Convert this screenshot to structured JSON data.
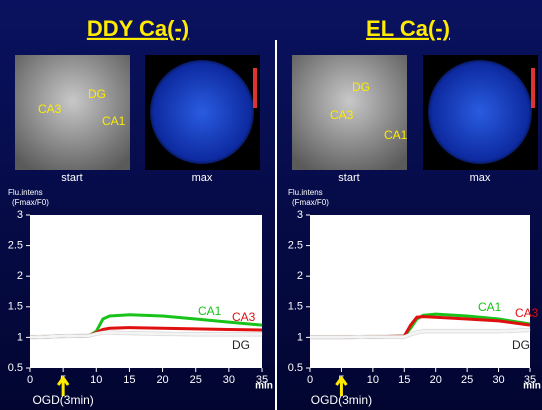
{
  "chart_data": [
    {
      "type": "line",
      "title": "DDY Ca(-)",
      "image_captions": [
        "start",
        "max"
      ],
      "image_labels": [
        "CA3",
        "DG",
        "CA1"
      ],
      "y_label": "Flu.intens",
      "y_label_unit": "(Fmax/F0)",
      "x_unit": "min",
      "annotation": "OGD(3min)",
      "x": [
        0,
        5,
        9,
        10,
        11,
        12,
        15,
        20,
        25,
        30,
        35
      ],
      "series": [
        {
          "name": "CA1",
          "color": "#19c319",
          "values": [
            1.0,
            1.02,
            1.03,
            1.1,
            1.3,
            1.35,
            1.37,
            1.35,
            1.3,
            1.25,
            1.2
          ]
        },
        {
          "name": "CA3",
          "color": "#e01010",
          "values": [
            1.0,
            1.02,
            1.03,
            1.08,
            1.13,
            1.15,
            1.16,
            1.15,
            1.14,
            1.13,
            1.12
          ]
        },
        {
          "name": "DG",
          "color": "#f4f4f4",
          "values": [
            1.0,
            1.02,
            1.03,
            1.06,
            1.08,
            1.08,
            1.07,
            1.06,
            1.05,
            1.05,
            1.05
          ]
        }
      ],
      "xlim": [
        0,
        35
      ],
      "xticks": [
        0,
        5,
        10,
        15,
        20,
        25,
        30,
        35
      ],
      "ylim": [
        0.5,
        3
      ],
      "yticks": [
        0.5,
        1,
        1.5,
        2,
        2.5,
        3
      ]
    },
    {
      "type": "line",
      "title": "EL Ca(-)",
      "image_captions": [
        "start",
        "max"
      ],
      "image_labels": [
        "DG",
        "CA3",
        "CA1"
      ],
      "y_label": "Flu.intens",
      "y_label_unit": "(Fmax/F0)",
      "x_unit": "min",
      "annotation": "OGD(3min)",
      "x": [
        0,
        5,
        10,
        15,
        16,
        17,
        18,
        20,
        25,
        30,
        35
      ],
      "series": [
        {
          "name": "CA1",
          "color": "#19c319",
          "values": [
            1.0,
            1.0,
            1.01,
            1.02,
            1.15,
            1.3,
            1.36,
            1.38,
            1.35,
            1.3,
            1.22
          ]
        },
        {
          "name": "CA3",
          "color": "#e01010",
          "values": [
            1.0,
            1.0,
            1.01,
            1.02,
            1.2,
            1.33,
            1.34,
            1.33,
            1.3,
            1.27,
            1.2
          ]
        },
        {
          "name": "DG",
          "color": "#f4f4f4",
          "values": [
            1.0,
            1.0,
            1.01,
            1.01,
            1.05,
            1.08,
            1.1,
            1.1,
            1.1,
            1.1,
            1.12
          ]
        }
      ],
      "xlim": [
        0,
        35
      ],
      "xticks": [
        0,
        5,
        10,
        15,
        20,
        25,
        30,
        35
      ],
      "ylim": [
        0.5,
        3
      ],
      "yticks": [
        0.5,
        1,
        1.5,
        2,
        2.5,
        3
      ]
    }
  ]
}
